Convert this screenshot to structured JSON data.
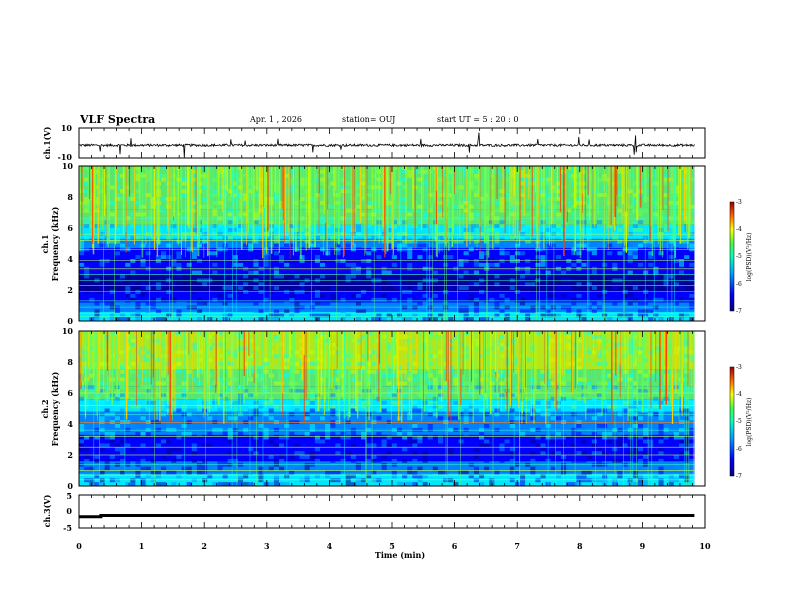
{
  "chart_data": [
    {
      "id": "ch1-waveform",
      "type": "line",
      "ylabel": "ch.1(V)",
      "ylim": [
        -10,
        10
      ],
      "yticks": [
        "10",
        "-10"
      ],
      "xlim": [
        0,
        10
      ]
    },
    {
      "id": "ch1-spectrogram",
      "type": "heatmap",
      "ylabel_line1": "ch.1",
      "ylabel_line2": "Frequency (kHz)",
      "ylim": [
        0,
        10
      ],
      "yticks": [
        "0",
        "2",
        "4",
        "6",
        "8",
        "10"
      ],
      "xlim": [
        0,
        10
      ],
      "colorbar_label": "log(PSD)(V²/Hz)",
      "colorbar_range": [
        -7,
        -3
      ],
      "colorbar_ticks": [
        "-3",
        "-4",
        "-5",
        "-6",
        "-7"
      ]
    },
    {
      "id": "ch2-spectrogram",
      "type": "heatmap",
      "ylabel_line1": "ch.2",
      "ylabel_line2": "Frequency (kHz)",
      "ylim": [
        0,
        10
      ],
      "yticks": [
        "0",
        "2",
        "4",
        "6",
        "8",
        "10"
      ],
      "xlim": [
        0,
        10
      ],
      "colorbar_label": "log(PSD)(V²/Hz)",
      "colorbar_range": [
        -7,
        -3
      ],
      "colorbar_ticks": [
        "-3",
        "-4",
        "-5",
        "-6",
        "-7"
      ]
    },
    {
      "id": "ch3-waveform",
      "type": "line",
      "ylabel": "ch.3(V)",
      "ylim": [
        -5,
        5
      ],
      "yticks": [
        "5",
        "0",
        "-5"
      ],
      "xlim": [
        0,
        10
      ]
    }
  ],
  "header": {
    "title": "VLF Spectra",
    "date": "Apr. 1  , 2026",
    "station": "station= OUJ",
    "start": "start  UT  =   5  : 20 : 0"
  },
  "xaxis": {
    "label": "Time  (min)",
    "ticks": [
      "0",
      "1",
      "2",
      "3",
      "4",
      "5",
      "6",
      "7",
      "8",
      "9",
      "10"
    ],
    "data_end": 9.83
  },
  "colors": {
    "axis": "#000000",
    "trace": "#000000",
    "colormap": [
      "#000090",
      "#0000ff",
      "#0090ff",
      "#00ffff",
      "#60ff60",
      "#c8ff00",
      "#ffd000",
      "#ff4000",
      "#c80000"
    ]
  }
}
